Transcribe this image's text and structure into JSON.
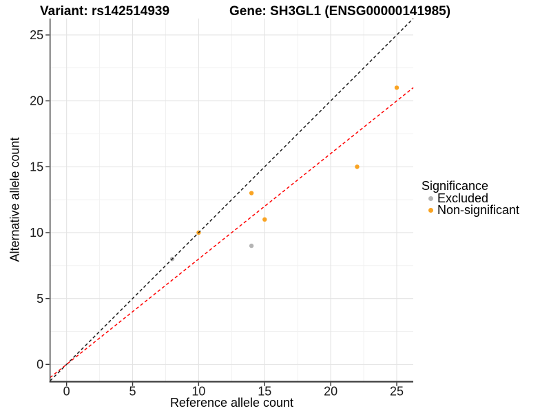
{
  "title": {
    "left": "Variant: rs142514939",
    "right": "Gene: SH3GL1 (ENSG00000141985)"
  },
  "chart_data": {
    "type": "scatter",
    "xlabel": "Reference allele count",
    "ylabel": "Alternative allele count",
    "xlim": [
      -1.25,
      26.25
    ],
    "ylim": [
      -1.25,
      26.25
    ],
    "x_breaks": [
      0,
      5,
      10,
      15,
      20,
      25
    ],
    "y_breaks": [
      0,
      5,
      10,
      15,
      20,
      25
    ],
    "minor_breaks": [
      2.5,
      7.5,
      12.5,
      17.5,
      22.5
    ],
    "grid": true,
    "series": [
      {
        "name": "Excluded",
        "color": "#B4B4B4",
        "points": [
          [
            8,
            8
          ],
          [
            14,
            9
          ]
        ]
      },
      {
        "name": "Non-significant",
        "color": "#F9A322",
        "points": [
          [
            10,
            10
          ],
          [
            14,
            13
          ],
          [
            15,
            11
          ],
          [
            22,
            15
          ],
          [
            25,
            21
          ]
        ]
      }
    ],
    "lines": [
      {
        "name": "identity",
        "slope": 1.0,
        "intercept": 0,
        "color": "#1A1A1A"
      },
      {
        "name": "fit",
        "slope": 0.8,
        "intercept": 0,
        "color": "#FF0000"
      }
    ],
    "legend": {
      "title": "Significance",
      "position": "right",
      "items": [
        {
          "label": "Excluded",
          "color": "#B4B4B4"
        },
        {
          "label": "Non-significant",
          "color": "#F9A322"
        }
      ]
    }
  }
}
